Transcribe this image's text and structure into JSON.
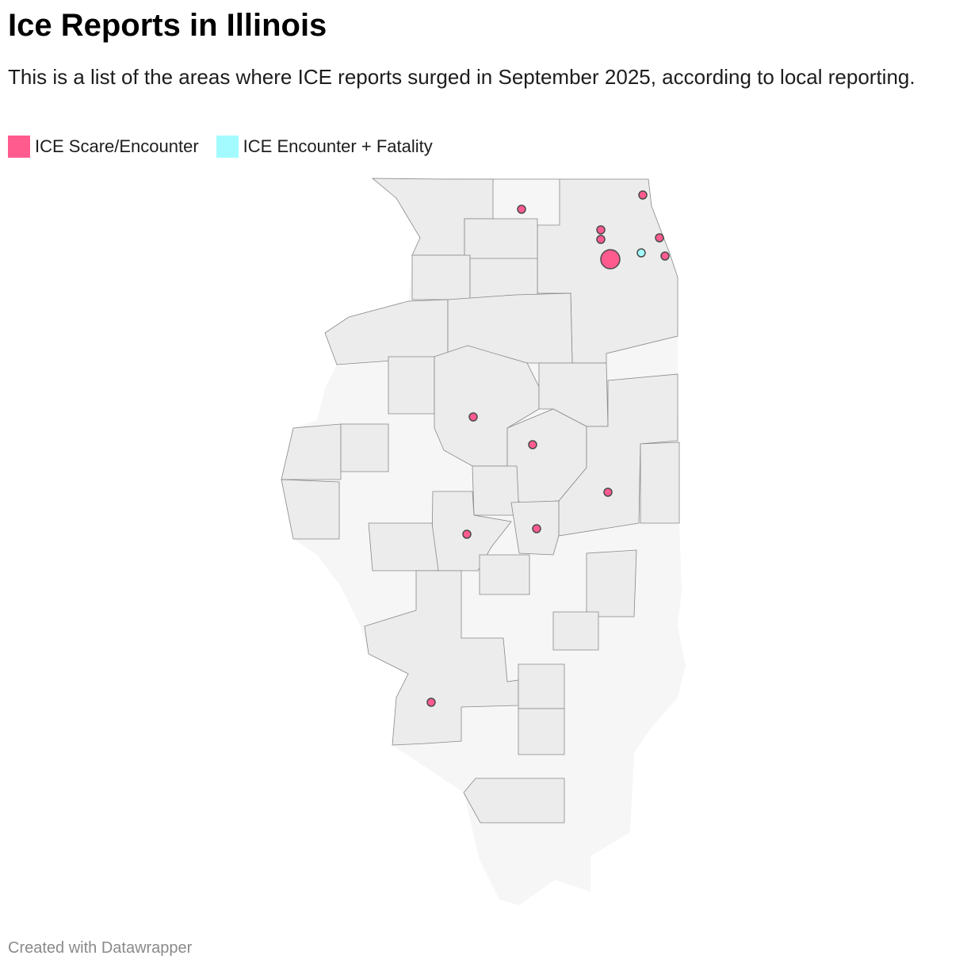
{
  "header": {
    "title": "Ice Reports in Illinois",
    "subtitle": "This is a list of the areas where ICE reports surged in September 2025, according to local reporting."
  },
  "legend": [
    {
      "label": "ICE Scare/Encounter",
      "color": "#ff5b8f"
    },
    {
      "label": "ICE Encounter + Fatality",
      "color": "#a3fbff"
    }
  ],
  "footer": "Created with Datawrapper"
}
